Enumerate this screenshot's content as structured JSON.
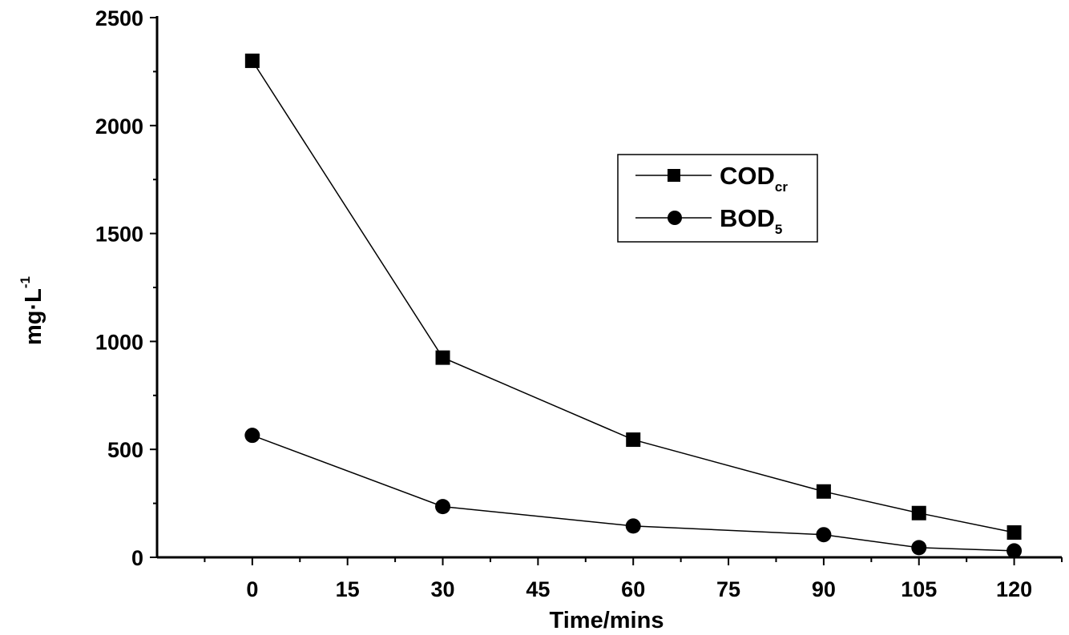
{
  "chart_data": {
    "type": "line",
    "title": "",
    "xlabel": "Time/mins",
    "ylabel": {
      "base": "mg·L",
      "sup": "-1"
    },
    "xlim": [
      -15,
      127.5
    ],
    "ylim": [
      0,
      2500
    ],
    "x_ticks": [
      0,
      15,
      30,
      45,
      60,
      75,
      90,
      105,
      120
    ],
    "y_ticks": [
      0,
      500,
      1000,
      1500,
      2000,
      2500
    ],
    "grid": false,
    "legend_position": "upper-right",
    "series": [
      {
        "name": "COD",
        "name_sub": "cr",
        "marker": "square",
        "x": [
          0,
          30,
          60,
          90,
          105,
          120
        ],
        "y": [
          2300,
          925,
          545,
          305,
          205,
          115
        ]
      },
      {
        "name": "BOD",
        "name_sub": "5",
        "marker": "circle",
        "x": [
          0,
          30,
          60,
          90,
          105,
          120
        ],
        "y": [
          565,
          235,
          145,
          105,
          45,
          30
        ]
      }
    ]
  }
}
